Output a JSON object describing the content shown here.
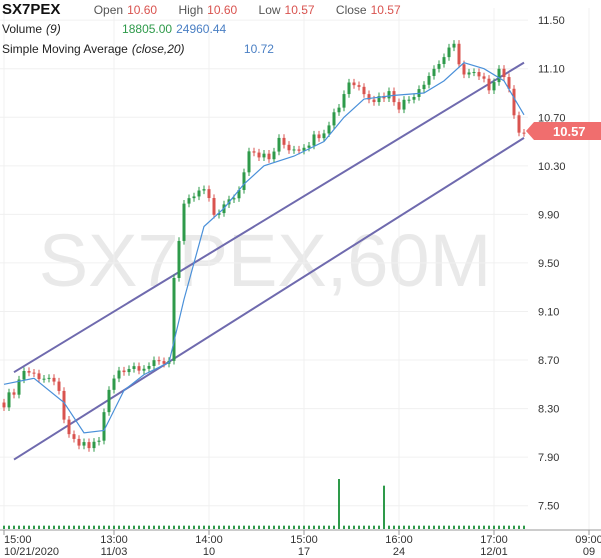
{
  "legend": {
    "ticker": "SX7PEX",
    "open_label": "Open",
    "open": "10.60",
    "high_label": "High",
    "high": "10.60",
    "low_label": "Low",
    "low": "10.57",
    "close_label": "Close",
    "close": "10.57",
    "volume_label": "Volume",
    "volume_param": "(9)",
    "volume_value": "18805.00",
    "volume_ma": "24960.44",
    "sma_label": "Simple Moving Average",
    "sma_param": "(close,20)",
    "sma_value": "10.72"
  },
  "watermark": "SX7PEX,60M",
  "colors": {
    "up": "#2e9a4a",
    "down": "#d9534f",
    "sma": "#4a90d9",
    "trend": "#6f6aae",
    "price_tag": "#f06e6e"
  },
  "chart_data": {
    "type": "candlestick",
    "y_axis": {
      "min": 7.3,
      "max": 11.6,
      "ticks": [
        "11.50",
        "11.10",
        "10.70",
        "10.30",
        "9.90",
        "9.50",
        "9.10",
        "8.70",
        "8.30",
        "7.90",
        "7.50"
      ]
    },
    "x_axis": {
      "ticks": [
        {
          "bar": 0,
          "top": "15:00",
          "bottom": "10/21/2020"
        },
        {
          "bar": 22,
          "top": "13:00",
          "bottom": "11/03"
        },
        {
          "bar": 41,
          "top": "14:00",
          "bottom": "10"
        },
        {
          "bar": 60,
          "top": "15:00",
          "bottom": "17"
        },
        {
          "bar": 79,
          "top": "16:00",
          "bottom": "24"
        },
        {
          "bar": 98,
          "top": "17:00",
          "bottom": "12/01"
        },
        {
          "bar": 117,
          "top": "09:00",
          "bottom": "09"
        }
      ]
    },
    "last_price": "10.57",
    "key_closes": [
      [
        0,
        8.35
      ],
      [
        2,
        8.45
      ],
      [
        4,
        8.62
      ],
      [
        6,
        8.58
      ],
      [
        9,
        8.55
      ],
      [
        11,
        8.42
      ],
      [
        13,
        8.05
      ],
      [
        15,
        8.0
      ],
      [
        17,
        7.98
      ],
      [
        19,
        8.05
      ],
      [
        21,
        8.45
      ],
      [
        23,
        8.62
      ],
      [
        26,
        8.65
      ],
      [
        30,
        8.66
      ],
      [
        33,
        8.7
      ],
      [
        34,
        9.4
      ],
      [
        36,
        9.95
      ],
      [
        38,
        10.05
      ],
      [
        40,
        10.1
      ],
      [
        42,
        9.9
      ],
      [
        45,
        10.0
      ],
      [
        47,
        10.1
      ],
      [
        49,
        10.45
      ],
      [
        51,
        10.4
      ],
      [
        53,
        10.35
      ],
      [
        55,
        10.5
      ],
      [
        57,
        10.45
      ],
      [
        59,
        10.45
      ],
      [
        61,
        10.5
      ],
      [
        64,
        10.6
      ],
      [
        67,
        10.8
      ],
      [
        69,
        11.0
      ],
      [
        71,
        10.95
      ],
      [
        74,
        10.85
      ],
      [
        77,
        10.9
      ],
      [
        79,
        10.8
      ],
      [
        81,
        10.85
      ],
      [
        83,
        10.95
      ],
      [
        86,
        11.1
      ],
      [
        88,
        11.2
      ],
      [
        90,
        11.28
      ],
      [
        92,
        11.05
      ],
      [
        94,
        11.05
      ],
      [
        97,
        10.95
      ],
      [
        99,
        11.1
      ],
      [
        100,
        11.05
      ],
      [
        101,
        10.9
      ],
      [
        102,
        10.75
      ],
      [
        103,
        10.6
      ],
      [
        104,
        10.57
      ]
    ],
    "sma_points": [
      [
        0,
        8.5
      ],
      [
        6,
        8.55
      ],
      [
        12,
        8.35
      ],
      [
        16,
        8.1
      ],
      [
        20,
        8.12
      ],
      [
        24,
        8.45
      ],
      [
        28,
        8.58
      ],
      [
        33,
        8.68
      ],
      [
        36,
        9.2
      ],
      [
        40,
        9.8
      ],
      [
        44,
        9.95
      ],
      [
        48,
        10.15
      ],
      [
        52,
        10.3
      ],
      [
        58,
        10.38
      ],
      [
        64,
        10.5
      ],
      [
        68,
        10.7
      ],
      [
        72,
        10.85
      ],
      [
        78,
        10.88
      ],
      [
        84,
        10.9
      ],
      [
        88,
        11.0
      ],
      [
        92,
        11.15
      ],
      [
        96,
        11.1
      ],
      [
        100,
        11.0
      ],
      [
        104,
        10.72
      ]
    ],
    "trend_lines": [
      {
        "name": "upper-channel",
        "from": [
          0,
          8.6
        ],
        "to": [
          104,
          11.15
        ]
      },
      {
        "name": "lower-channel",
        "from": [
          0,
          7.88
        ],
        "to": [
          104,
          10.53
        ]
      }
    ],
    "volume": {
      "base": 200,
      "spikes": [
        [
          67,
          3000
        ],
        [
          76,
          2600
        ]
      ]
    }
  }
}
